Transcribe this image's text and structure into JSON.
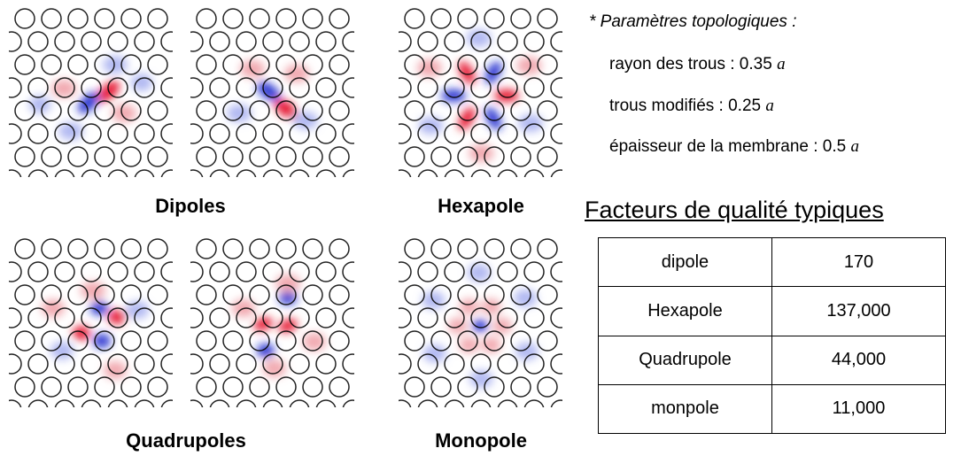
{
  "labels": {
    "dipoles": "Dipoles",
    "hexapole": "Hexapole",
    "quadrupoles": "Quadrupoles",
    "monopole": "Monopole"
  },
  "parameters": {
    "title": "* Paramètres topologiques :",
    "lines": [
      {
        "text": "rayon des trous : 0.35",
        "unit": "a"
      },
      {
        "text": "trous modifiés : 0.25",
        "unit": "a"
      },
      {
        "text": "épaisseur de la membrane : 0.5",
        "unit": "a"
      }
    ]
  },
  "table": {
    "title": "Facteurs de qualité typiques",
    "rows": [
      [
        "dipole",
        "170"
      ],
      [
        "Hexapole",
        "137,000"
      ],
      [
        "Quadrupole",
        "44,000"
      ],
      [
        "monpole",
        "11,000"
      ]
    ]
  }
}
